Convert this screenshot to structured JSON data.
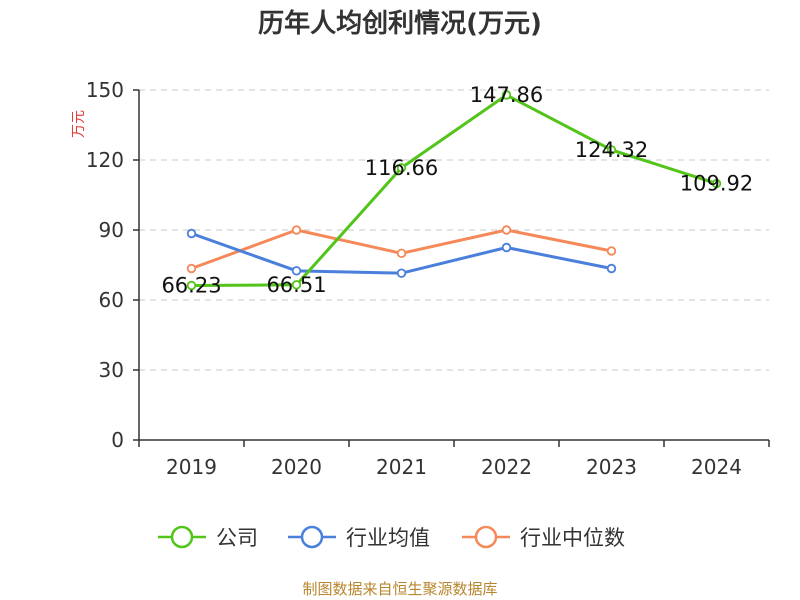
{
  "chart_data": {
    "type": "line",
    "title": "历年人均创利情况(万元)",
    "ylabel": "万元",
    "xlabel": "",
    "categories": [
      "2019",
      "2020",
      "2021",
      "2022",
      "2023",
      "2024"
    ],
    "ylim": [
      0,
      150
    ],
    "yticks": [
      0,
      30,
      60,
      90,
      120,
      150
    ],
    "grid": true,
    "legend_position": "bottom",
    "series": [
      {
        "name": "公司",
        "color": "#52c41a",
        "values": [
          66.23,
          66.51,
          116.66,
          147.86,
          124.32,
          109.92
        ],
        "labels": [
          "66.23",
          "66.51",
          "116.66",
          "147.86",
          "124.32",
          "109.92"
        ]
      },
      {
        "name": "行业均值",
        "color": "#4a7fdc",
        "values": [
          88.5,
          72.5,
          71.5,
          82.5,
          73.5,
          null
        ]
      },
      {
        "name": "行业中位数",
        "color": "#f5895a",
        "values": [
          73.5,
          90,
          80,
          90,
          81,
          null
        ]
      }
    ],
    "source": "制图数据来自恒生聚源数据库"
  }
}
